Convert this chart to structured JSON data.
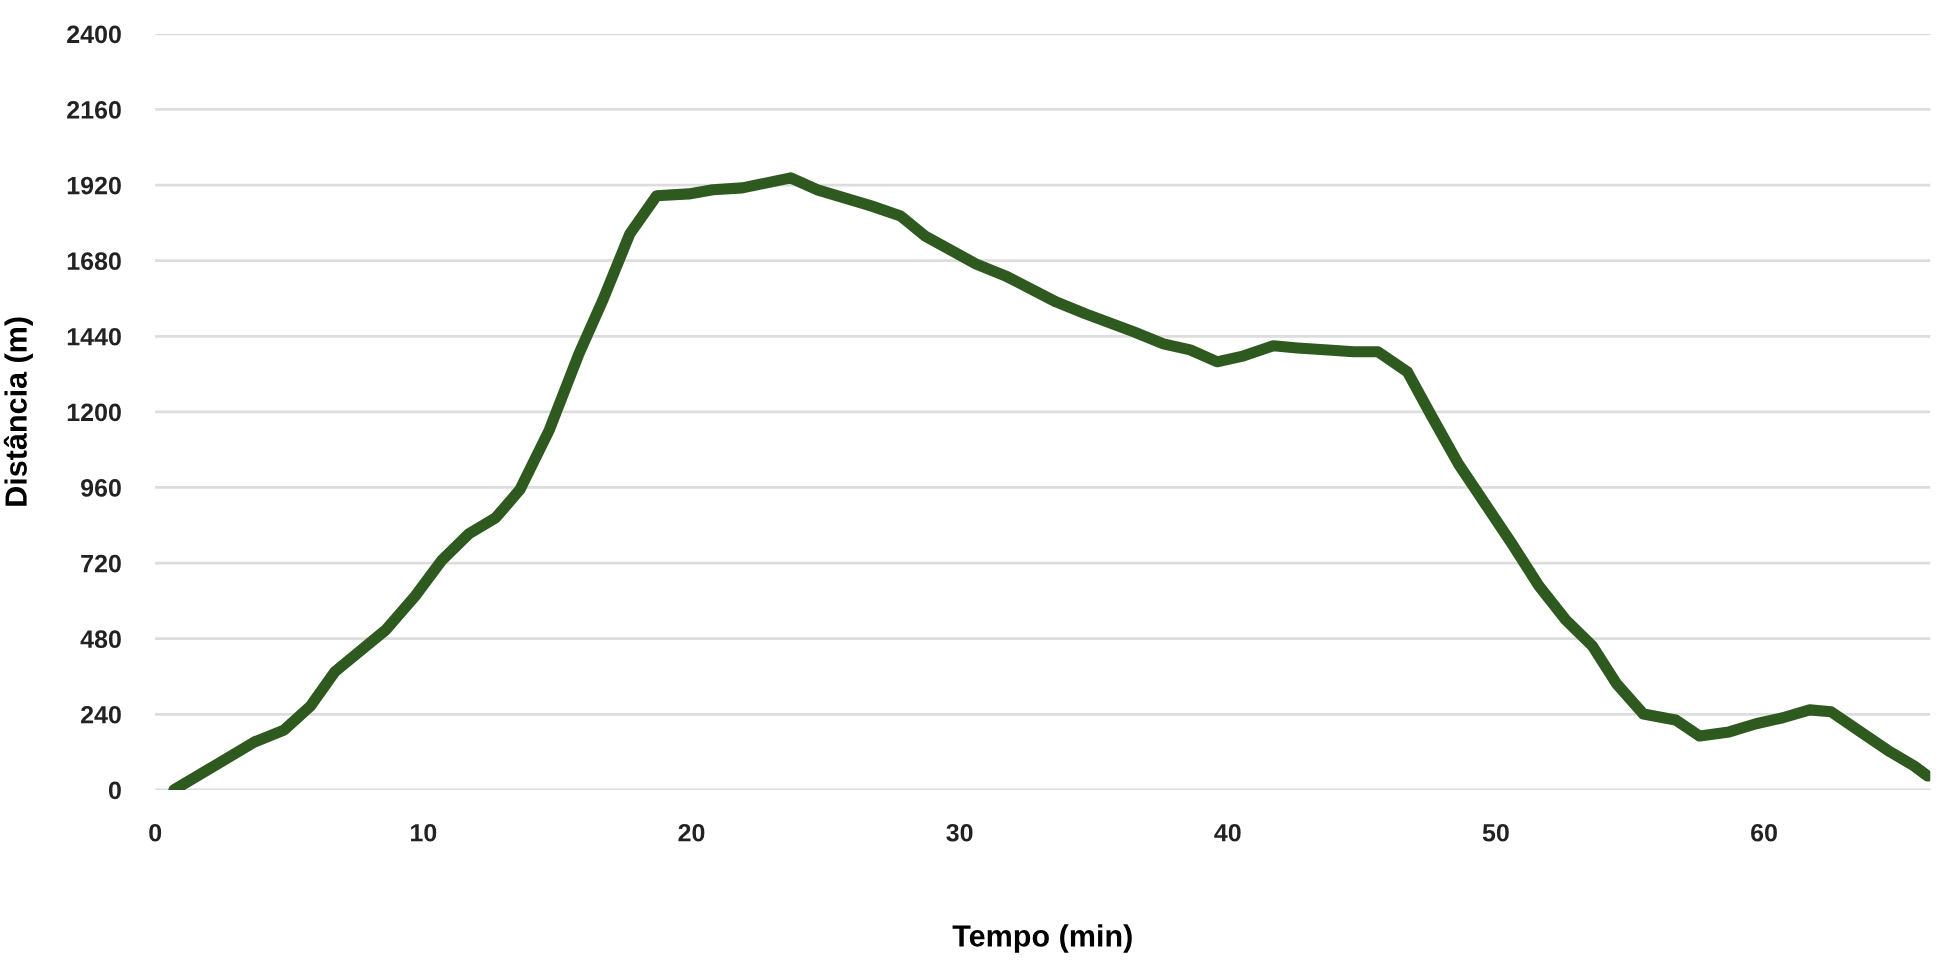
{
  "chart_data": {
    "type": "line",
    "xlabel": "Tempo (min)",
    "ylabel": "Distância (m)",
    "xlim": [
      0,
      66.2
    ],
    "xticks": [
      0,
      10,
      20,
      30,
      40,
      50,
      60
    ],
    "ylim": [
      0,
      2400
    ],
    "yticks": [
      0,
      240,
      480,
      720,
      960,
      1200,
      1440,
      1680,
      1920,
      2160,
      2400
    ],
    "grid": "y",
    "marker": "none",
    "line_style": "solid",
    "series": [
      {
        "color": "#2e5a1f",
        "x": [
          0.7,
          2.2,
          3.7,
          4.8,
          5.8,
          6.7,
          8.6,
          9.7,
          10.7,
          11.7,
          12.7,
          13.6,
          14.7,
          15.8,
          16.7,
          17.7,
          18.7,
          19.9,
          20.8,
          21.9,
          23.7,
          24.7,
          26.7,
          27.8,
          28.7,
          30.6,
          31.7,
          33.6,
          34.7,
          36.5,
          37.6,
          38.6,
          39.6,
          40.6,
          41.7,
          42.6,
          43.6,
          44.7,
          45.6,
          46.7,
          47.6,
          48.6,
          49.6,
          50.6,
          51.6,
          52.6,
          53.6,
          54.5,
          55.5,
          56.7,
          57.6,
          58.7,
          59.7,
          60.7,
          61.7,
          62.5,
          63.6,
          64.7,
          65.6,
          66.1
        ],
        "values": [
          0,
          76,
          152,
          190,
          267,
          375,
          508,
          616,
          730,
          813,
          864,
          953,
          1143,
          1384,
          1556,
          1765,
          1886,
          1892,
          1905,
          1911,
          1943,
          1905,
          1854,
          1822,
          1759,
          1670,
          1632,
          1549,
          1511,
          1454,
          1416,
          1397,
          1359,
          1378,
          1410,
          1403,
          1397,
          1391,
          1391,
          1327,
          1187,
          1035,
          908,
          781,
          648,
          540,
          457,
          337,
          241,
          222,
          171,
          184,
          210,
          229,
          254,
          248,
          184,
          121,
          76,
          44
        ]
      }
    ]
  }
}
